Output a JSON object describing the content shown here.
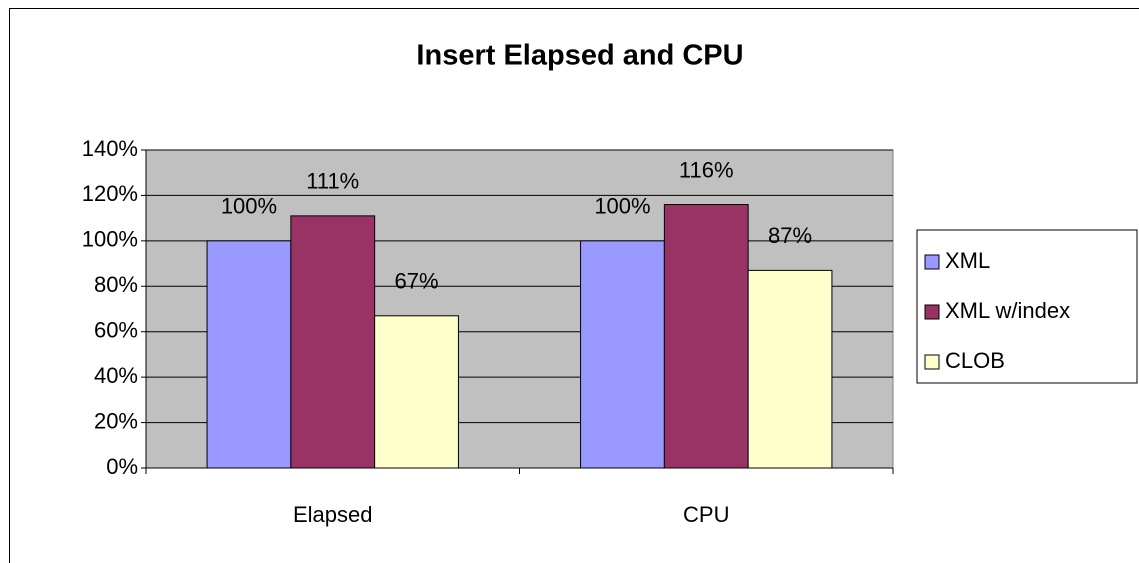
{
  "chart_data": {
    "type": "bar",
    "title": "Insert Elapsed and CPU",
    "categories": [
      "Elapsed",
      "CPU"
    ],
    "series": [
      {
        "name": "XML",
        "color": "#9999ff",
        "values": [
          100,
          100
        ],
        "value_labels": [
          "100%",
          "100%"
        ]
      },
      {
        "name": "XML w/index",
        "color": "#993366",
        "values": [
          111,
          116
        ],
        "value_labels": [
          "111%",
          "116%"
        ]
      },
      {
        "name": "CLOB",
        "color": "#ffffcc",
        "values": [
          67,
          87
        ],
        "value_labels": [
          "67%",
          "87%"
        ]
      }
    ],
    "ylim": [
      0,
      140
    ],
    "yticks": [
      {
        "value": 0,
        "label": "0%"
      },
      {
        "value": 20,
        "label": "20%"
      },
      {
        "value": 40,
        "label": "40%"
      },
      {
        "value": 60,
        "label": "60%"
      },
      {
        "value": 80,
        "label": "80%"
      },
      {
        "value": 100,
        "label": "100%"
      },
      {
        "value": 120,
        "label": "120%"
      },
      {
        "value": 140,
        "label": "140%"
      }
    ],
    "grid": true,
    "legend": "right",
    "plot_background": "#c0c0c0"
  }
}
